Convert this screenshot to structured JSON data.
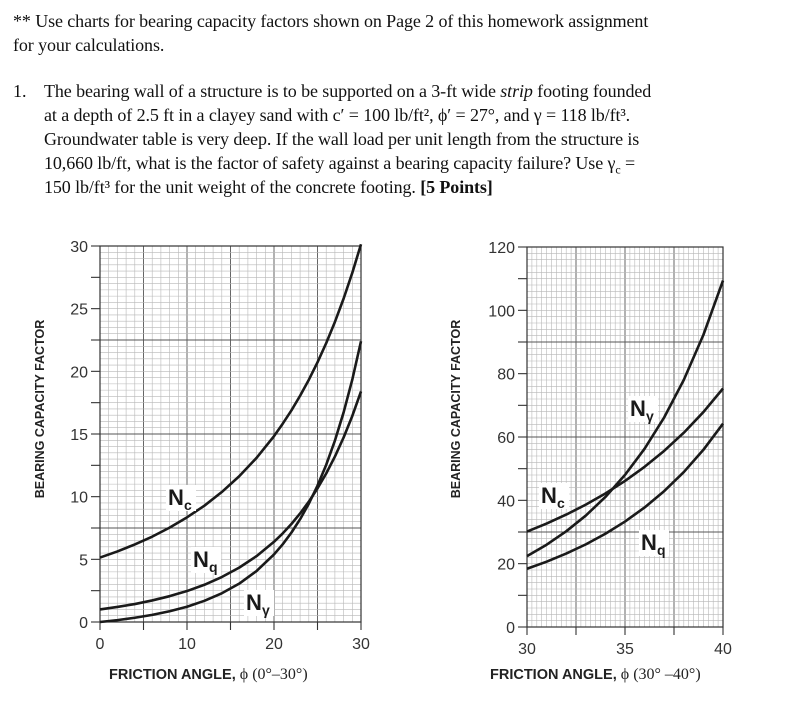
{
  "note": {
    "line1": "** Use charts for bearing capacity factors shown on Page 2 of this homework assignment",
    "line2": "for your calculations."
  },
  "problem": {
    "number": "1.",
    "line1_a": "The bearing wall of a structure is to be supported on a 3-ft wide ",
    "line1_em": "strip",
    "line1_b": " footing founded",
    "line2": "at a depth of 2.5 ft in a clayey sand with c′ = 100 lb/ft², ϕ′ = 27°, and γ = 118 lb/ft³.",
    "line3": "Groundwater table is very deep. If the wall load per unit length from the structure is",
    "line4_a": "10,660 lb/ft, what is the factor of safety against a bearing capacity failure?  Use γ",
    "line4_sub": "c",
    "line4_b": " =",
    "line5_a": "150 lb/ft³ for the unit weight of the concrete footing. ",
    "line5_bold": "[5 Points]"
  },
  "chart_data": [
    {
      "type": "line",
      "xlabel": "FRICTION ANGLE, ",
      "xlabel_symbol": "ϕ (0°–30°)",
      "ylabel": "BEARING CAPACITY FACTOR",
      "xlim": [
        0,
        30
      ],
      "ylim": [
        0,
        30
      ],
      "xticks": [
        0,
        10,
        20,
        30
      ],
      "yticks": [
        0,
        5,
        10,
        15,
        20,
        25,
        30
      ],
      "grid": true,
      "x": [
        0,
        2,
        4,
        6,
        8,
        10,
        12,
        14,
        16,
        18,
        20,
        21,
        22,
        23,
        24,
        25,
        26,
        27,
        28,
        29,
        30
      ],
      "series": [
        {
          "name": "N",
          "sub": "c",
          "values": [
            5.14,
            5.63,
            6.19,
            6.81,
            7.53,
            8.35,
            9.28,
            10.37,
            11.63,
            13.1,
            14.83,
            15.82,
            16.88,
            18.05,
            19.32,
            20.72,
            22.25,
            23.94,
            25.8,
            27.86,
            30.14
          ]
        },
        {
          "name": "N",
          "sub": "q",
          "values": [
            1.0,
            1.2,
            1.43,
            1.72,
            2.06,
            2.47,
            2.97,
            3.59,
            4.34,
            5.26,
            6.4,
            7.07,
            7.82,
            8.66,
            9.6,
            10.66,
            11.85,
            13.2,
            14.72,
            16.44,
            18.4
          ]
        },
        {
          "name": "N",
          "sub": "γ",
          "values": [
            0.0,
            0.15,
            0.34,
            0.57,
            0.86,
            1.22,
            1.69,
            2.29,
            3.06,
            4.07,
            5.39,
            6.2,
            7.13,
            8.2,
            9.44,
            10.88,
            12.54,
            14.47,
            16.72,
            19.34,
            22.4
          ]
        }
      ]
    },
    {
      "type": "line",
      "xlabel": "FRICTION ANGLE, ",
      "xlabel_symbol": "ϕ (30° –40°)",
      "ylabel": "BEARING CAPACITY FACTOR",
      "xlim": [
        30,
        40
      ],
      "ylim": [
        0,
        120
      ],
      "xticks": [
        30,
        35,
        40
      ],
      "yticks": [
        0,
        20,
        40,
        60,
        80,
        100,
        120
      ],
      "grid": true,
      "x": [
        30,
        31,
        32,
        33,
        34,
        35,
        36,
        37,
        38,
        39,
        40
      ],
      "series": [
        {
          "name": "N",
          "sub": "c",
          "values": [
            30.14,
            32.67,
            35.49,
            38.64,
            42.16,
            46.12,
            50.59,
            55.63,
            61.35,
            67.87,
            75.31
          ]
        },
        {
          "name": "N",
          "sub": "q",
          "values": [
            18.4,
            20.63,
            23.18,
            26.09,
            29.44,
            33.3,
            37.75,
            42.92,
            48.93,
            55.96,
            64.2
          ]
        },
        {
          "name": "N",
          "sub": "γ",
          "values": [
            22.4,
            25.99,
            30.22,
            35.19,
            41.06,
            48.03,
            56.31,
            66.19,
            78.03,
            92.25,
            109.41
          ]
        }
      ]
    }
  ]
}
